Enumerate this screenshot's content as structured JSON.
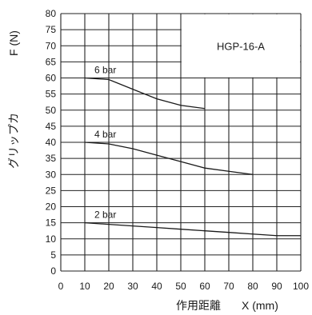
{
  "chart_data": {
    "type": "line",
    "title": "HGP-16-A",
    "xlabel": "作用距離",
    "xlabel_symbol": "X (mm)",
    "ylabel": "グリップカ",
    "ylabel_symbol": "F (N)",
    "xlim": [
      0,
      100
    ],
    "ylim": [
      0,
      80
    ],
    "x_ticks": [
      0,
      10,
      20,
      30,
      40,
      50,
      60,
      70,
      80,
      90,
      100
    ],
    "y_ticks": [
      0,
      5,
      10,
      15,
      20,
      25,
      30,
      35,
      40,
      45,
      50,
      55,
      60,
      65,
      70,
      75,
      80
    ],
    "grid": true,
    "series": [
      {
        "name": "6 bar",
        "x": [
          10,
          20,
          30,
          40,
          50,
          60
        ],
        "y": [
          60,
          59.5,
          56.5,
          53.5,
          51.5,
          50.5
        ]
      },
      {
        "name": "4 bar",
        "x": [
          10,
          20,
          30,
          40,
          50,
          60,
          70,
          80
        ],
        "y": [
          40,
          39.5,
          38,
          36,
          34,
          32,
          31,
          30
        ]
      },
      {
        "name": "2 bar",
        "x": [
          10,
          20,
          30,
          40,
          50,
          60,
          70,
          80,
          90,
          100
        ],
        "y": [
          15,
          14.5,
          14,
          13.5,
          13,
          12.5,
          12,
          11.5,
          11,
          11
        ]
      }
    ]
  }
}
